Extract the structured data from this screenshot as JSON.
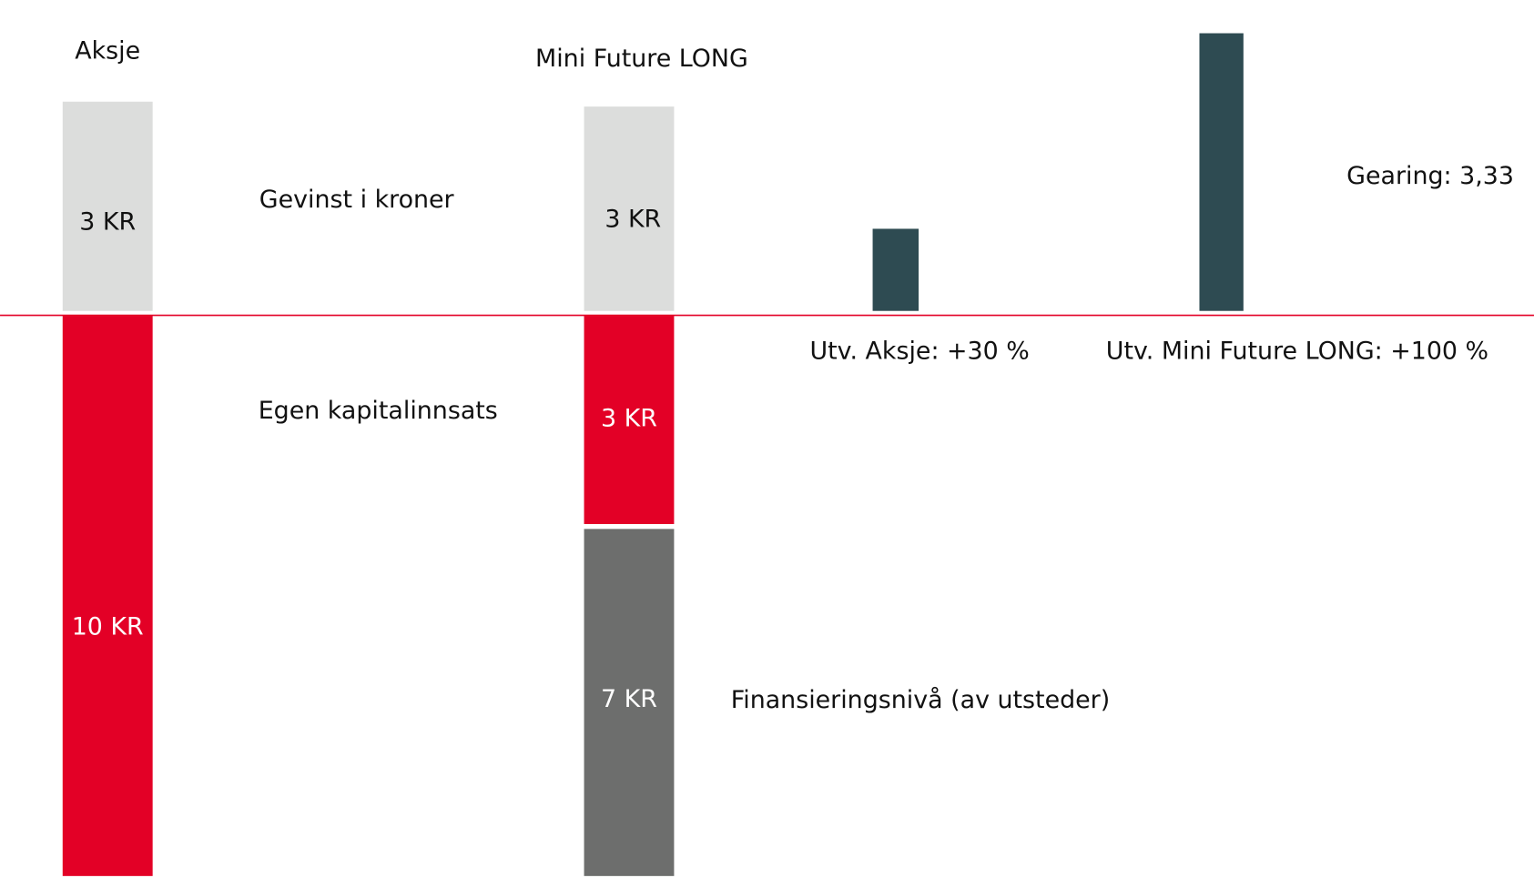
{
  "stock": {
    "title": "Aksje",
    "gain": "3 KR",
    "equity": "10 KR"
  },
  "rows": {
    "gain": "Gevinst i kroner",
    "equity": "Egen kapitalinnsats"
  },
  "mini_future": {
    "title": "Mini Future LONG",
    "gain": "3 KR",
    "equity": "3 KR",
    "financing": "7 KR",
    "financing_label": "Finansieringsnivå (av utsteder)"
  },
  "performance": {
    "stock": "Utv. Aksje: +30 %",
    "mini_future": "Utv. Mini Future LONG: +100 %",
    "gearing": "Gearing: 3,33"
  }
}
